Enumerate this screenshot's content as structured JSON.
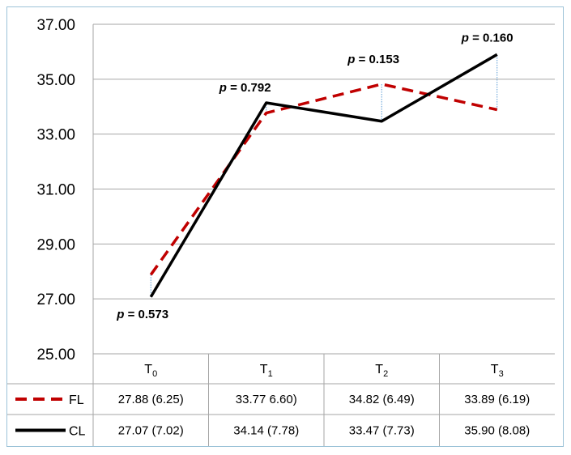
{
  "chart_data": {
    "type": "line",
    "title": "",
    "xlabel": "",
    "ylabel": "",
    "ylim": [
      25.0,
      37.0
    ],
    "y_ticks": [
      "25.00",
      "27.00",
      "29.00",
      "31.00",
      "33.00",
      "35.00",
      "37.00"
    ],
    "grid": true,
    "categories": [
      {
        "base": "T",
        "sub": "0"
      },
      {
        "base": "T",
        "sub": "1"
      },
      {
        "base": "T",
        "sub": "2"
      },
      {
        "base": "T",
        "sub": "3"
      }
    ],
    "series": [
      {
        "name": "FL",
        "color": "#c00000",
        "style": "dashed",
        "values": [
          27.88,
          33.77,
          34.82,
          33.89
        ],
        "table": [
          "27.88 (6.25)",
          "33.77 6.60)",
          "34.82 (6.49)",
          "33.89 (6.19)"
        ]
      },
      {
        "name": "CL",
        "color": "#000000",
        "style": "solid",
        "values": [
          27.07,
          34.14,
          33.47,
          35.9
        ],
        "table": [
          "27.07 (7.02)",
          "34.14 (7.78)",
          "33.47 (7.73)",
          "35.90 (8.08)"
        ]
      }
    ],
    "annotations": [
      {
        "p_label": "p",
        "text": " = 0.573"
      },
      {
        "p_label": "p",
        "text": " = 0.792"
      },
      {
        "p_label": "p",
        "text": " = 0.153"
      },
      {
        "p_label": "p",
        "text": " = 0.160"
      }
    ],
    "drop_line_color": "#5b9bd5",
    "grid_color": "#a6a6a6"
  }
}
